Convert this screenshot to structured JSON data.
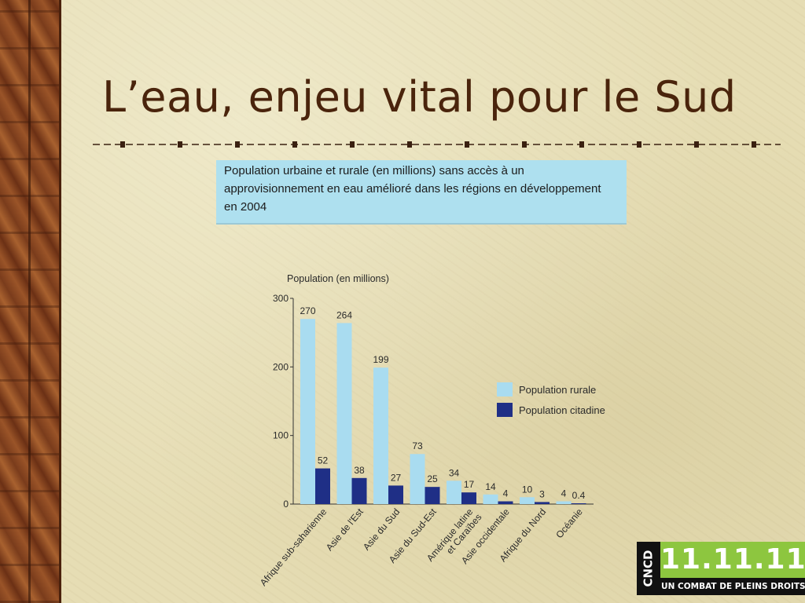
{
  "slide": {
    "title": "L’eau, enjeu vital pour le Sud",
    "caption_lines": [
      "Population urbaine et rurale (en millions) sans accès à un",
      "approvisionnement en eau amélioré dans les régions en développement",
      "en 2004"
    ]
  },
  "colors": {
    "rural": "#a9dcf0",
    "urban": "#1f2f86",
    "background": "#e6ddb4",
    "title": "#4a240c",
    "caption_bg": "#aee0ef"
  },
  "chart_data": {
    "type": "bar",
    "title": "",
    "ylabel": "Population (en millions)",
    "xlabel": "",
    "ylim": [
      0,
      300
    ],
    "yticks": [
      0,
      100,
      200,
      300
    ],
    "grid": false,
    "legend_position": "right",
    "categories": [
      "Afrique sub-saharienne",
      "Asie de l'Est",
      "Asie du Sud",
      "Asie du Sud-Est",
      "Amérique latine et Caraïbes",
      "Asie occidentale",
      "Afrique du Nord",
      "Océanie"
    ],
    "series": [
      {
        "name": "Population rurale",
        "values": [
          270,
          264,
          199,
          73,
          34,
          14,
          10,
          4
        ],
        "labels": [
          "270",
          "264",
          "199",
          "73",
          "34",
          "14",
          "10",
          "4"
        ]
      },
      {
        "name": "Population citadine",
        "values": [
          52,
          38,
          27,
          25,
          17,
          4,
          3,
          0.4
        ],
        "labels": [
          "52",
          "38",
          "27",
          "25",
          "17",
          "4",
          "3",
          "0.4"
        ]
      }
    ]
  },
  "logo": {
    "side_text": "CNCD",
    "number": "11.11.11",
    "tagline": "UN COMBAT DE PLEINS DROITS"
  }
}
